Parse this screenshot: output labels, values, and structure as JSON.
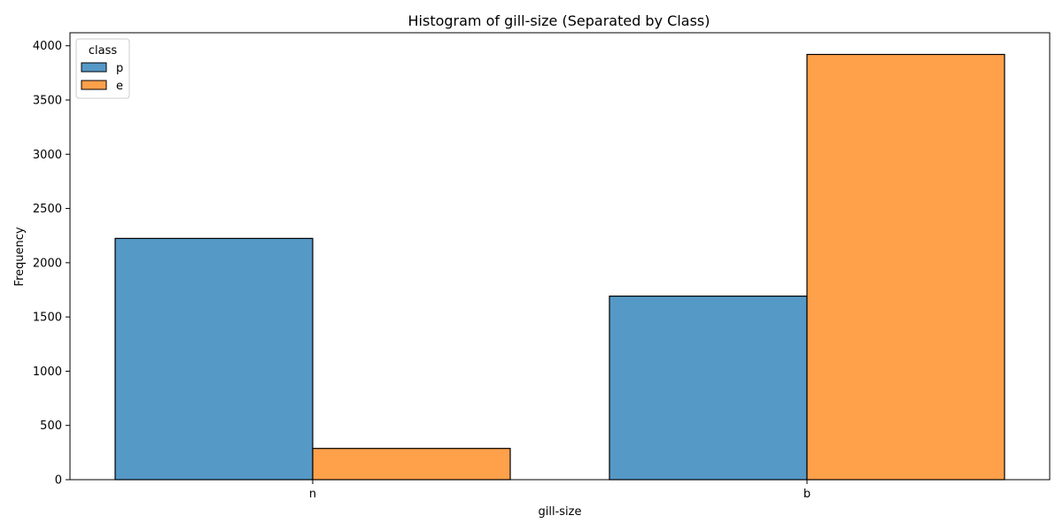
{
  "chart_data": {
    "type": "bar",
    "title": "Histogram of gill-size (Separated by Class)",
    "xlabel": "gill-size",
    "ylabel": "Frequency",
    "categories": [
      "n",
      "b"
    ],
    "series": [
      {
        "name": "p",
        "values": [
          2224,
          1692
        ],
        "color": "#5599c7"
      },
      {
        "name": "e",
        "values": [
          288,
          3920
        ],
        "color": "#ffa04a"
      }
    ],
    "ylim": [
      0,
      4120
    ],
    "yticks": [
      0,
      500,
      1000,
      1500,
      2000,
      2500,
      3000,
      3500,
      4000
    ],
    "grid": false,
    "legend": {
      "title": "class",
      "placement": "top-left"
    }
  }
}
